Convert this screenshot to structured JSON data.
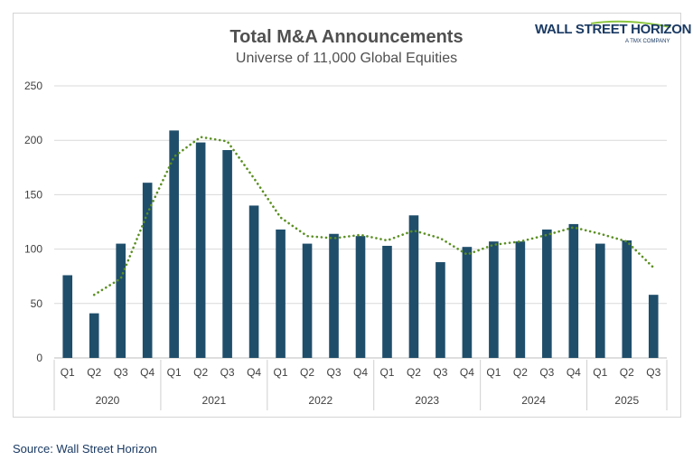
{
  "chart_data": {
    "type": "bar",
    "title": "Total M&A Announcements",
    "subtitle": "Universe of 11,000 Global Equities",
    "categories": [
      "Q1",
      "Q2",
      "Q3",
      "Q4",
      "Q1",
      "Q2",
      "Q3",
      "Q4",
      "Q1",
      "Q2",
      "Q3",
      "Q4",
      "Q1",
      "Q2",
      "Q3",
      "Q4",
      "Q1",
      "Q2",
      "Q3",
      "Q4",
      "Q1",
      "Q2",
      "Q3"
    ],
    "groups": [
      {
        "label": "2020",
        "count": 4
      },
      {
        "label": "2021",
        "count": 4
      },
      {
        "label": "2022",
        "count": 4
      },
      {
        "label": "2023",
        "count": 4
      },
      {
        "label": "2024",
        "count": 4
      },
      {
        "label": "2025",
        "count": 3
      }
    ],
    "series": [
      {
        "type": "bar",
        "color": "#1f4e6b",
        "values": [
          76,
          41,
          105,
          161,
          209,
          198,
          191,
          140,
          118,
          105,
          114,
          112,
          103,
          131,
          88,
          102,
          107,
          107,
          118,
          123,
          105,
          108,
          58
        ]
      },
      {
        "type": "line",
        "style": "dotted",
        "color": "#5b8f22",
        "values": [
          null,
          58,
          73,
          133,
          185,
          203,
          199,
          165,
          129,
          112,
          110,
          113,
          108,
          117,
          110,
          95,
          104,
          107,
          113,
          120,
          114,
          107,
          83
        ]
      }
    ],
    "yticks": [
      0,
      50,
      100,
      150,
      200,
      250
    ],
    "ylim": [
      0,
      250
    ],
    "xlabel": "",
    "ylabel": "",
    "grid": true,
    "legend": "none"
  },
  "logo": {
    "main": "WALL STREET HORIZON",
    "sub": "A TMX COMPANY"
  },
  "source": "Source: Wall Street Horizon"
}
